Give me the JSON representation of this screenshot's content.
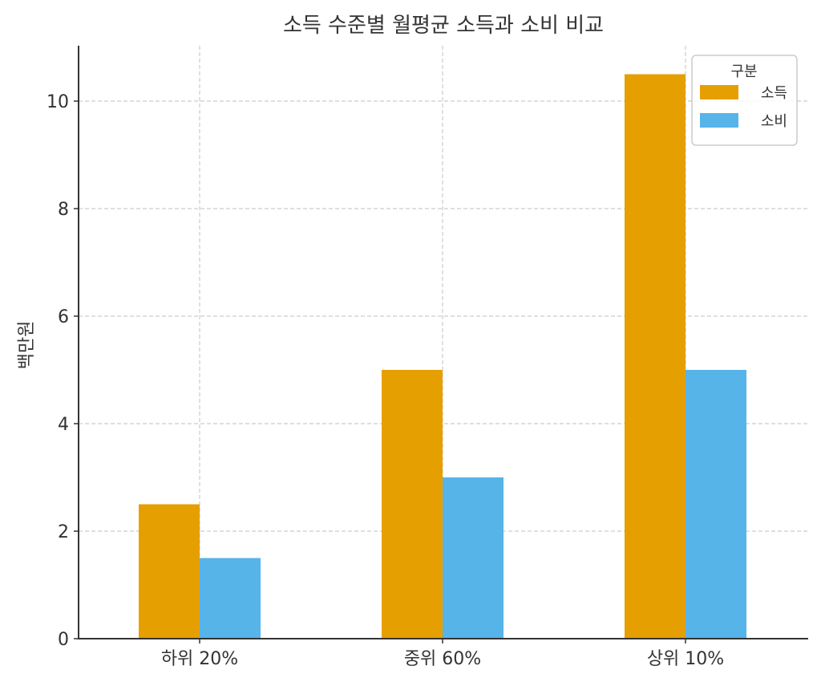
{
  "chart_data": {
    "type": "bar",
    "title": "소득 수준별 월평균 소득과 소비 비교",
    "xlabel": "",
    "ylabel": "백만원",
    "categories": [
      "하위 20%",
      "중위 60%",
      "상위 10%"
    ],
    "series": [
      {
        "name": "소득",
        "values": [
          2.5,
          5,
          10.5
        ],
        "color": "#E69F00"
      },
      {
        "name": "소비",
        "values": [
          1.5,
          3,
          5
        ],
        "color": "#56B4E9"
      }
    ],
    "ylim": [
      0,
      11
    ],
    "yticks": [
      0,
      2,
      4,
      6,
      8,
      10
    ],
    "grid": true,
    "legend": {
      "title": "구분",
      "position": "upper right"
    }
  }
}
